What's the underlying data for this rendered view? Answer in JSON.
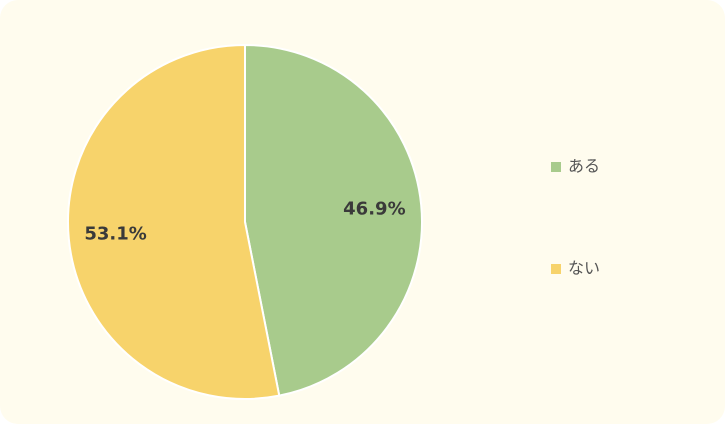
{
  "chart_data": {
    "type": "pie",
    "categories": [
      "ある",
      "ない"
    ],
    "values": [
      46.9,
      53.1
    ],
    "value_labels": [
      "46.9%",
      "53.1%"
    ],
    "colors": [
      "#a8cb8c",
      "#f7d36b"
    ],
    "legend": "right"
  }
}
